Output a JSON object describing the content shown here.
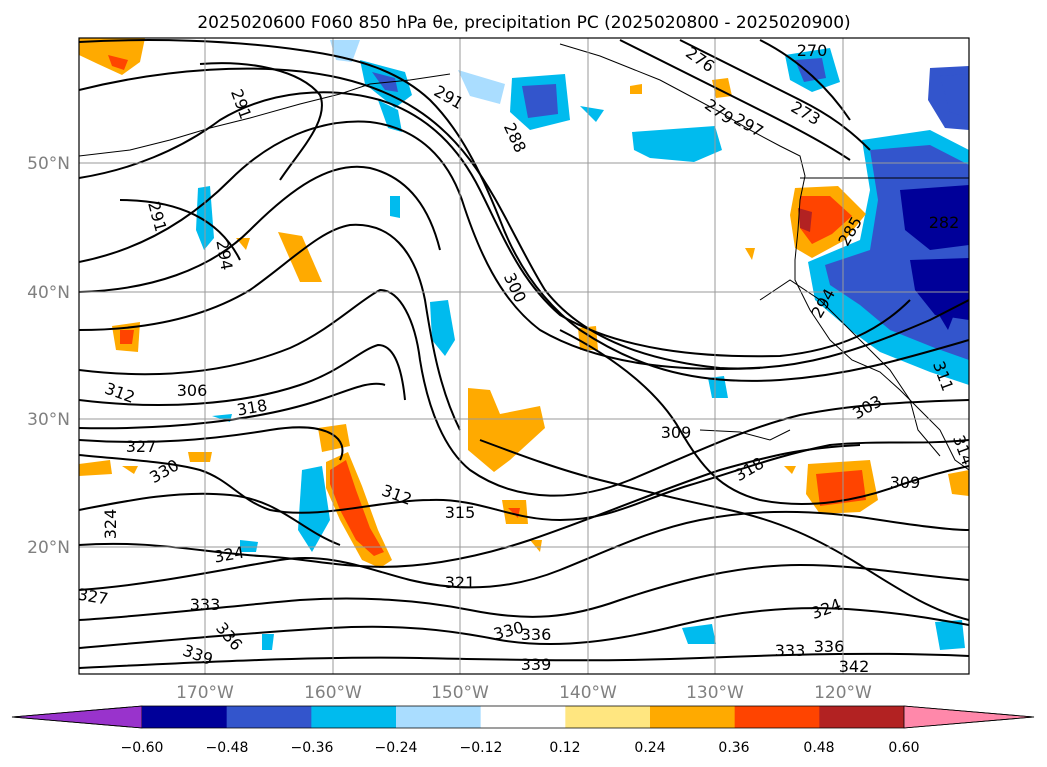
{
  "title": "2025020600 F060 850 hPa θe, precipitation PC (2025020800 - 2025020900)",
  "lat_labels": [
    "50°N",
    "40°N",
    "30°N",
    "20°N"
  ],
  "lon_labels": [
    "170°W",
    "160°W",
    "150°W",
    "140°W",
    "130°W",
    "120°W"
  ],
  "colorbar": {
    "ticks": [
      "−0.60",
      "−0.48",
      "−0.36",
      "−0.24",
      "−0.12",
      "0.12",
      "0.24",
      "0.36",
      "0.48",
      "0.60"
    ],
    "colors": [
      "#9933cc",
      "#000099",
      "#3355cc",
      "#00bbee",
      "#aaddff",
      "#ffffff",
      "#ffe680",
      "#ffaa00",
      "#ff4400",
      "#b22222",
      "#ff88aa"
    ]
  },
  "contour_labels": [
    "270",
    "273",
    "276",
    "279",
    "282",
    "285",
    "288",
    "291",
    "291",
    "291",
    "294",
    "294",
    "297",
    "300",
    "303",
    "306",
    "309",
    "309",
    "311",
    "312",
    "312",
    "314",
    "315",
    "318",
    "318",
    "321",
    "324",
    "324",
    "324",
    "327",
    "327",
    "330",
    "330",
    "333",
    "333",
    "336",
    "336",
    "336",
    "339",
    "339",
    "342"
  ]
}
